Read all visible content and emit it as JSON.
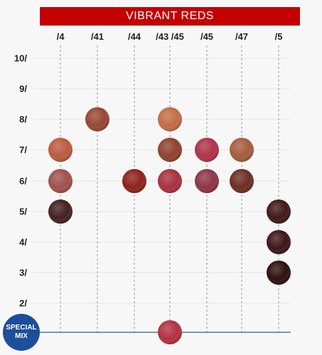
{
  "title": "VIBRANT REDS",
  "columns": [
    "/4",
    "/41",
    "/44",
    "/43 /45",
    "/45",
    "/47",
    "/5"
  ],
  "rows": [
    "10/",
    "9/",
    "8/",
    "7/",
    "6/",
    "5/",
    "4/",
    "3/",
    "2/"
  ],
  "special_mix": {
    "line1": "SPECIAL",
    "line2": "MIX",
    "color": "#1d4e9a"
  },
  "colors": {
    "banner": "#c40000",
    "grid_line": "#e4e4e4",
    "divider": "#9a9a9a",
    "special_line": "#2d5e8e"
  },
  "swatches": [
    {
      "col": 0,
      "row": "7/",
      "color": "#b9573a"
    },
    {
      "col": 0,
      "row": "6/",
      "color": "#9c4d48"
    },
    {
      "col": 0,
      "row": "5/",
      "color": "#3f1c1c"
    },
    {
      "col": 1,
      "row": "8/",
      "color": "#94442e"
    },
    {
      "col": 2,
      "row": "6/",
      "color": "#8a1e16"
    },
    {
      "col": 3,
      "row": "8/",
      "color": "#c06a44"
    },
    {
      "col": 3,
      "row": "7/",
      "color": "#8e3d2a"
    },
    {
      "col": 3,
      "row": "6/",
      "color": "#a72c3c"
    },
    {
      "col": 3,
      "row": "special",
      "color": "#b02e3f"
    },
    {
      "col": 4,
      "row": "7/",
      "color": "#ad2f45"
    },
    {
      "col": 4,
      "row": "6/",
      "color": "#8a3142"
    },
    {
      "col": 5,
      "row": "7/",
      "color": "#a45938"
    },
    {
      "col": 5,
      "row": "6/",
      "color": "#6a2a1f"
    },
    {
      "col": 6,
      "row": "5/",
      "color": "#3d1414"
    },
    {
      "col": 6,
      "row": "4/",
      "color": "#3a1212"
    },
    {
      "col": 6,
      "row": "3/",
      "color": "#2a0b0b"
    }
  ]
}
